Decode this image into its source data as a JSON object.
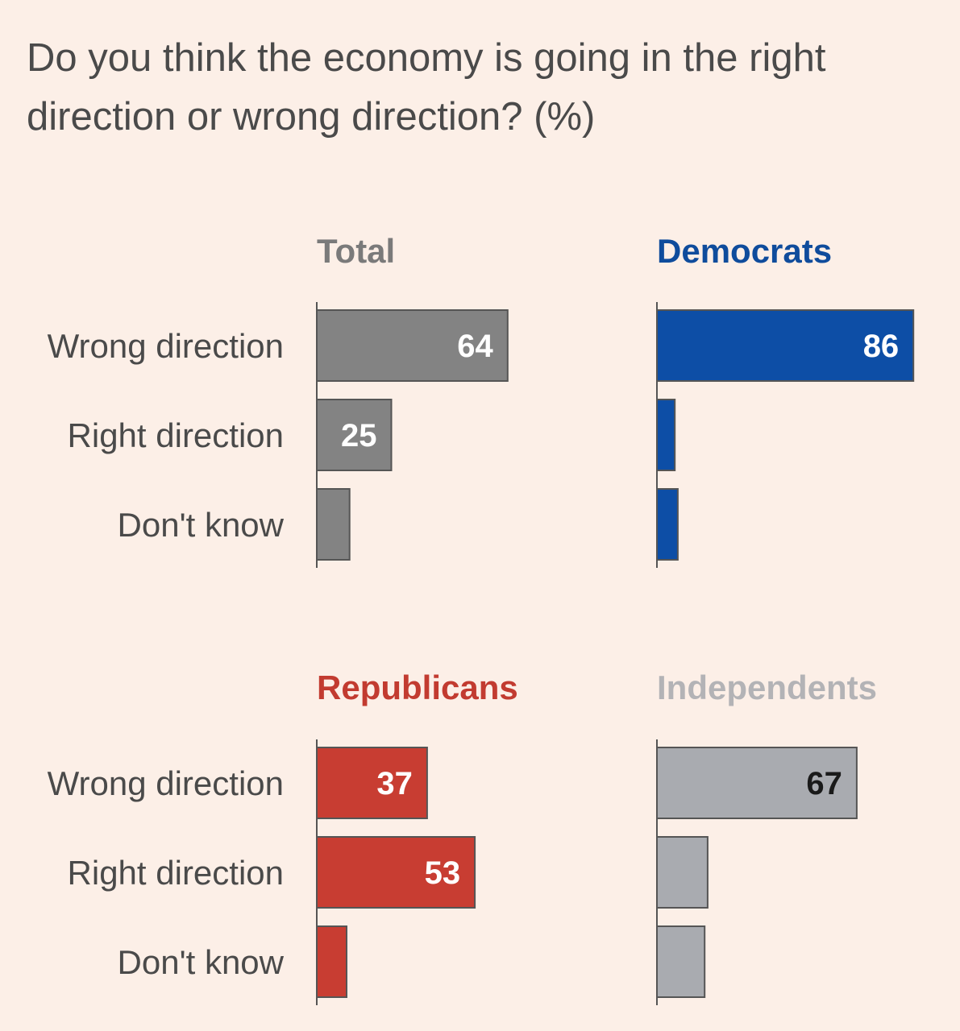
{
  "title": "Do you think the economy is going in the right direction or wrong direction? (%)",
  "chart_data": {
    "type": "bar",
    "orientation": "horizontal",
    "title": "Do you think the economy is going in the right direction or wrong direction? (%)",
    "categories": [
      "Wrong direction",
      "Right direction",
      "Don't know"
    ],
    "xlim": [
      0,
      100
    ],
    "grid": false,
    "legend": "none",
    "panels": [
      {
        "name": "Total",
        "color": "#838383",
        "title_color": "#7a7a7a",
        "value_label_color": "#ffffff",
        "values": [
          64,
          25,
          11
        ],
        "labels": [
          "64",
          "25",
          ""
        ]
      },
      {
        "name": "Democrats",
        "color": "#0d4ea6",
        "title_color": "#0f4c9c",
        "value_label_color": "#ffffff",
        "values": [
          86,
          6,
          7
        ],
        "labels": [
          "86",
          "",
          ""
        ]
      },
      {
        "name": "Republicans",
        "color": "#c83d32",
        "title_color": "#c23b30",
        "value_label_color": "#ffffff",
        "values": [
          37,
          53,
          10
        ],
        "labels": [
          "37",
          "53",
          ""
        ]
      },
      {
        "name": "Independents",
        "color": "#a9abb0",
        "title_color": "#b3b3b6",
        "value_label_color": "#1a1a1a",
        "values": [
          67,
          17,
          16
        ],
        "labels": [
          "67",
          "",
          ""
        ]
      }
    ]
  }
}
